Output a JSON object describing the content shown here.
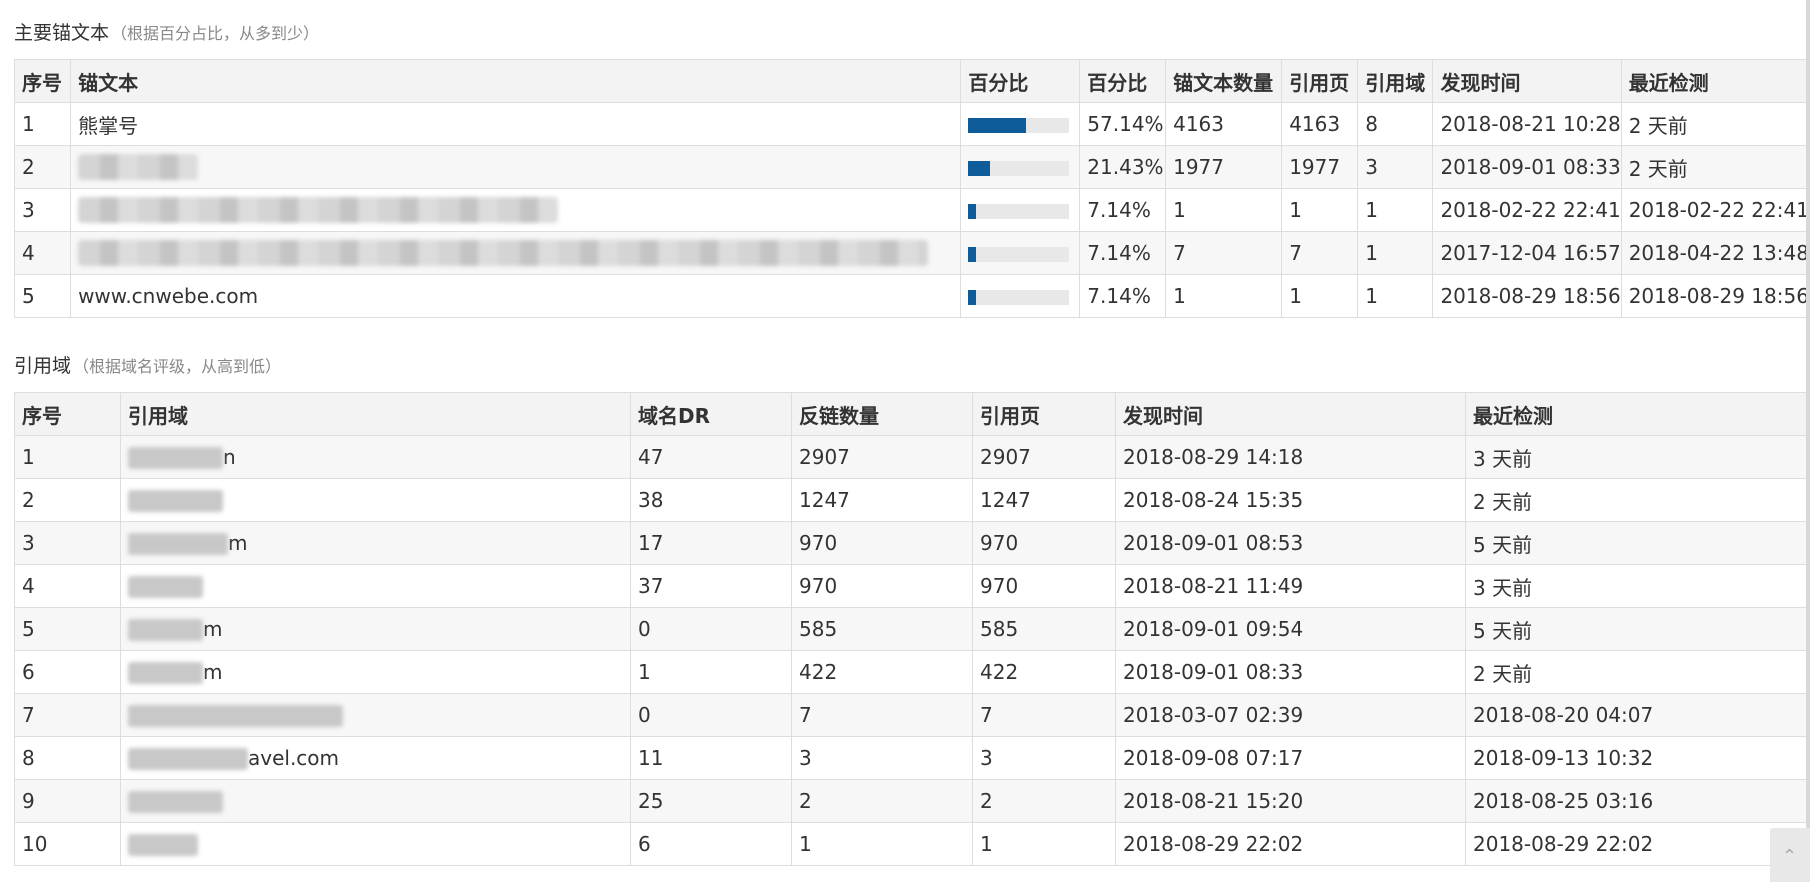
{
  "anchors": {
    "title": "主要锚文本",
    "subtitle": "（根据百分占比，从多到少）",
    "headers": [
      "序号",
      "锚文本",
      "百分比",
      "百分比",
      "锚文本数量",
      "引用页",
      "引用域",
      "发现时间",
      "最近检测"
    ],
    "rows": [
      {
        "no": "1",
        "text": "熊掌号",
        "pct_value": 57.14,
        "pct": "57.14%",
        "count": "4163",
        "pages": "4163",
        "domains": "8",
        "found": "2018-08-21 10:28",
        "checked": "2 天前",
        "blurred": false,
        "blur_len": 0
      },
      {
        "no": "2",
        "text": "",
        "pct_value": 21.43,
        "pct": "21.43%",
        "count": "1977",
        "pages": "1977",
        "domains": "3",
        "found": "2018-09-01 08:33",
        "checked": "2 天前",
        "blurred": true,
        "blur_len": 120
      },
      {
        "no": "3",
        "text": "",
        "pct_value": 7.14,
        "pct": "7.14%",
        "count": "1",
        "pages": "1",
        "domains": "1",
        "found": "2018-02-22 22:41",
        "checked": "2018-02-22 22:41",
        "blurred": true,
        "blur_len": 480
      },
      {
        "no": "4",
        "text": "",
        "pct_value": 7.14,
        "pct": "7.14%",
        "count": "7",
        "pages": "7",
        "domains": "1",
        "found": "2017-12-04 16:57",
        "checked": "2018-04-22 13:48",
        "blurred": true,
        "blur_len": 850
      },
      {
        "no": "5",
        "text": "www.cnwebe.com",
        "pct_value": 7.14,
        "pct": "7.14%",
        "count": "1",
        "pages": "1",
        "domains": "1",
        "found": "2018-08-29 18:56",
        "checked": "2018-08-29 18:56",
        "blurred": false,
        "blur_len": 0
      }
    ]
  },
  "referring": {
    "title": "引用域",
    "subtitle": "（根据域名评级，从高到低）",
    "headers": [
      "序号",
      "引用域",
      "域名DR",
      "反链数量",
      "引用页",
      "发现时间",
      "最近检测"
    ],
    "rows": [
      {
        "no": "1",
        "pre": "",
        "post": "n",
        "dr": "47",
        "backlinks": "2907",
        "pages": "2907",
        "found": "2018-08-29 14:18",
        "checked": "3 天前"
      },
      {
        "no": "2",
        "pre": "",
        "post": "",
        "dr": "38",
        "backlinks": "1247",
        "pages": "1247",
        "found": "2018-08-24 15:35",
        "checked": "2 天前"
      },
      {
        "no": "3",
        "pre": "",
        "post": "m",
        "dr": "17",
        "backlinks": "970",
        "pages": "970",
        "found": "2018-09-01 08:53",
        "checked": "5 天前"
      },
      {
        "no": "4",
        "pre": "",
        "post": "",
        "dr": "37",
        "backlinks": "970",
        "pages": "970",
        "found": "2018-08-21 11:49",
        "checked": "3 天前"
      },
      {
        "no": "5",
        "pre": "",
        "post": "m",
        "dr": "0",
        "backlinks": "585",
        "pages": "585",
        "found": "2018-09-01 09:54",
        "checked": "5 天前"
      },
      {
        "no": "6",
        "pre": "",
        "post": "m",
        "dr": "1",
        "backlinks": "422",
        "pages": "422",
        "found": "2018-09-01 08:33",
        "checked": "2 天前"
      },
      {
        "no": "7",
        "pre": "",
        "post": "",
        "dr": "0",
        "backlinks": "7",
        "pages": "7",
        "found": "2018-03-07 02:39",
        "checked": "2018-08-20 04:07"
      },
      {
        "no": "8",
        "pre": "",
        "post": "avel.com",
        "dr": "11",
        "backlinks": "3",
        "pages": "3",
        "found": "2018-09-08 07:17",
        "checked": "2018-09-13 10:32"
      },
      {
        "no": "9",
        "pre": "",
        "post": "",
        "dr": "25",
        "backlinks": "2",
        "pages": "2",
        "found": "2018-08-21 15:20",
        "checked": "2018-08-25 03:16"
      },
      {
        "no": "10",
        "pre": "",
        "post": "",
        "dr": "6",
        "backlinks": "1",
        "pages": "1",
        "found": "2018-08-29 22:02",
        "checked": "2018-08-29 22:02"
      }
    ]
  },
  "colors": {
    "bar_fill": "#0f5c9b",
    "bar_track": "#e8e8e8",
    "header_bg": "#f3f3f3",
    "stripe_bg": "#f7f7f7"
  },
  "icons": {
    "scroll_top": "chevron-up-icon"
  }
}
